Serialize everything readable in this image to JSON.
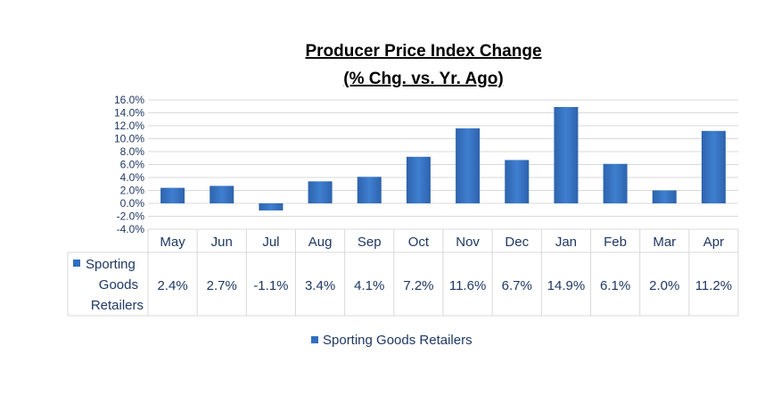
{
  "chart_data": {
    "type": "bar",
    "title": "Producer Price Index Change",
    "subtitle": "(% Chg. vs. Yr. Ago)",
    "categories": [
      "May",
      "Jun",
      "Jul",
      "Aug",
      "Sep",
      "Oct",
      "Nov",
      "Dec",
      "Jan",
      "Feb",
      "Mar",
      "Apr"
    ],
    "series": [
      {
        "name": "Sporting Goods Retailers",
        "values": [
          2.4,
          2.7,
          -1.1,
          3.4,
          4.1,
          7.2,
          11.6,
          6.7,
          14.9,
          6.1,
          2.0,
          11.2
        ],
        "labels": [
          "2.4%",
          "2.7%",
          "-1.1%",
          "3.4%",
          "4.1%",
          "7.2%",
          "11.6%",
          "6.7%",
          "14.9%",
          "6.1%",
          "2.0%",
          "11.2%"
        ],
        "color": "#2e6fc0"
      }
    ],
    "row_label_lines": [
      "Sporting",
      "Goods",
      "Retailers"
    ],
    "ylim": [
      -4.0,
      16.0
    ],
    "yticks": [
      16.0,
      14.0,
      12.0,
      10.0,
      8.0,
      6.0,
      4.0,
      2.0,
      0.0,
      -2.0,
      -4.0
    ],
    "ytick_labels": [
      "16.0%",
      "14.0%",
      "12.0%",
      "10.0%",
      "8.0%",
      "6.0%",
      "4.0%",
      "2.0%",
      "0.0%",
      "-2.0%",
      "-4.0%"
    ],
    "grid": true,
    "legend": {
      "position": "bottom",
      "label": "Sporting Goods Retailers"
    },
    "data_table": true
  }
}
